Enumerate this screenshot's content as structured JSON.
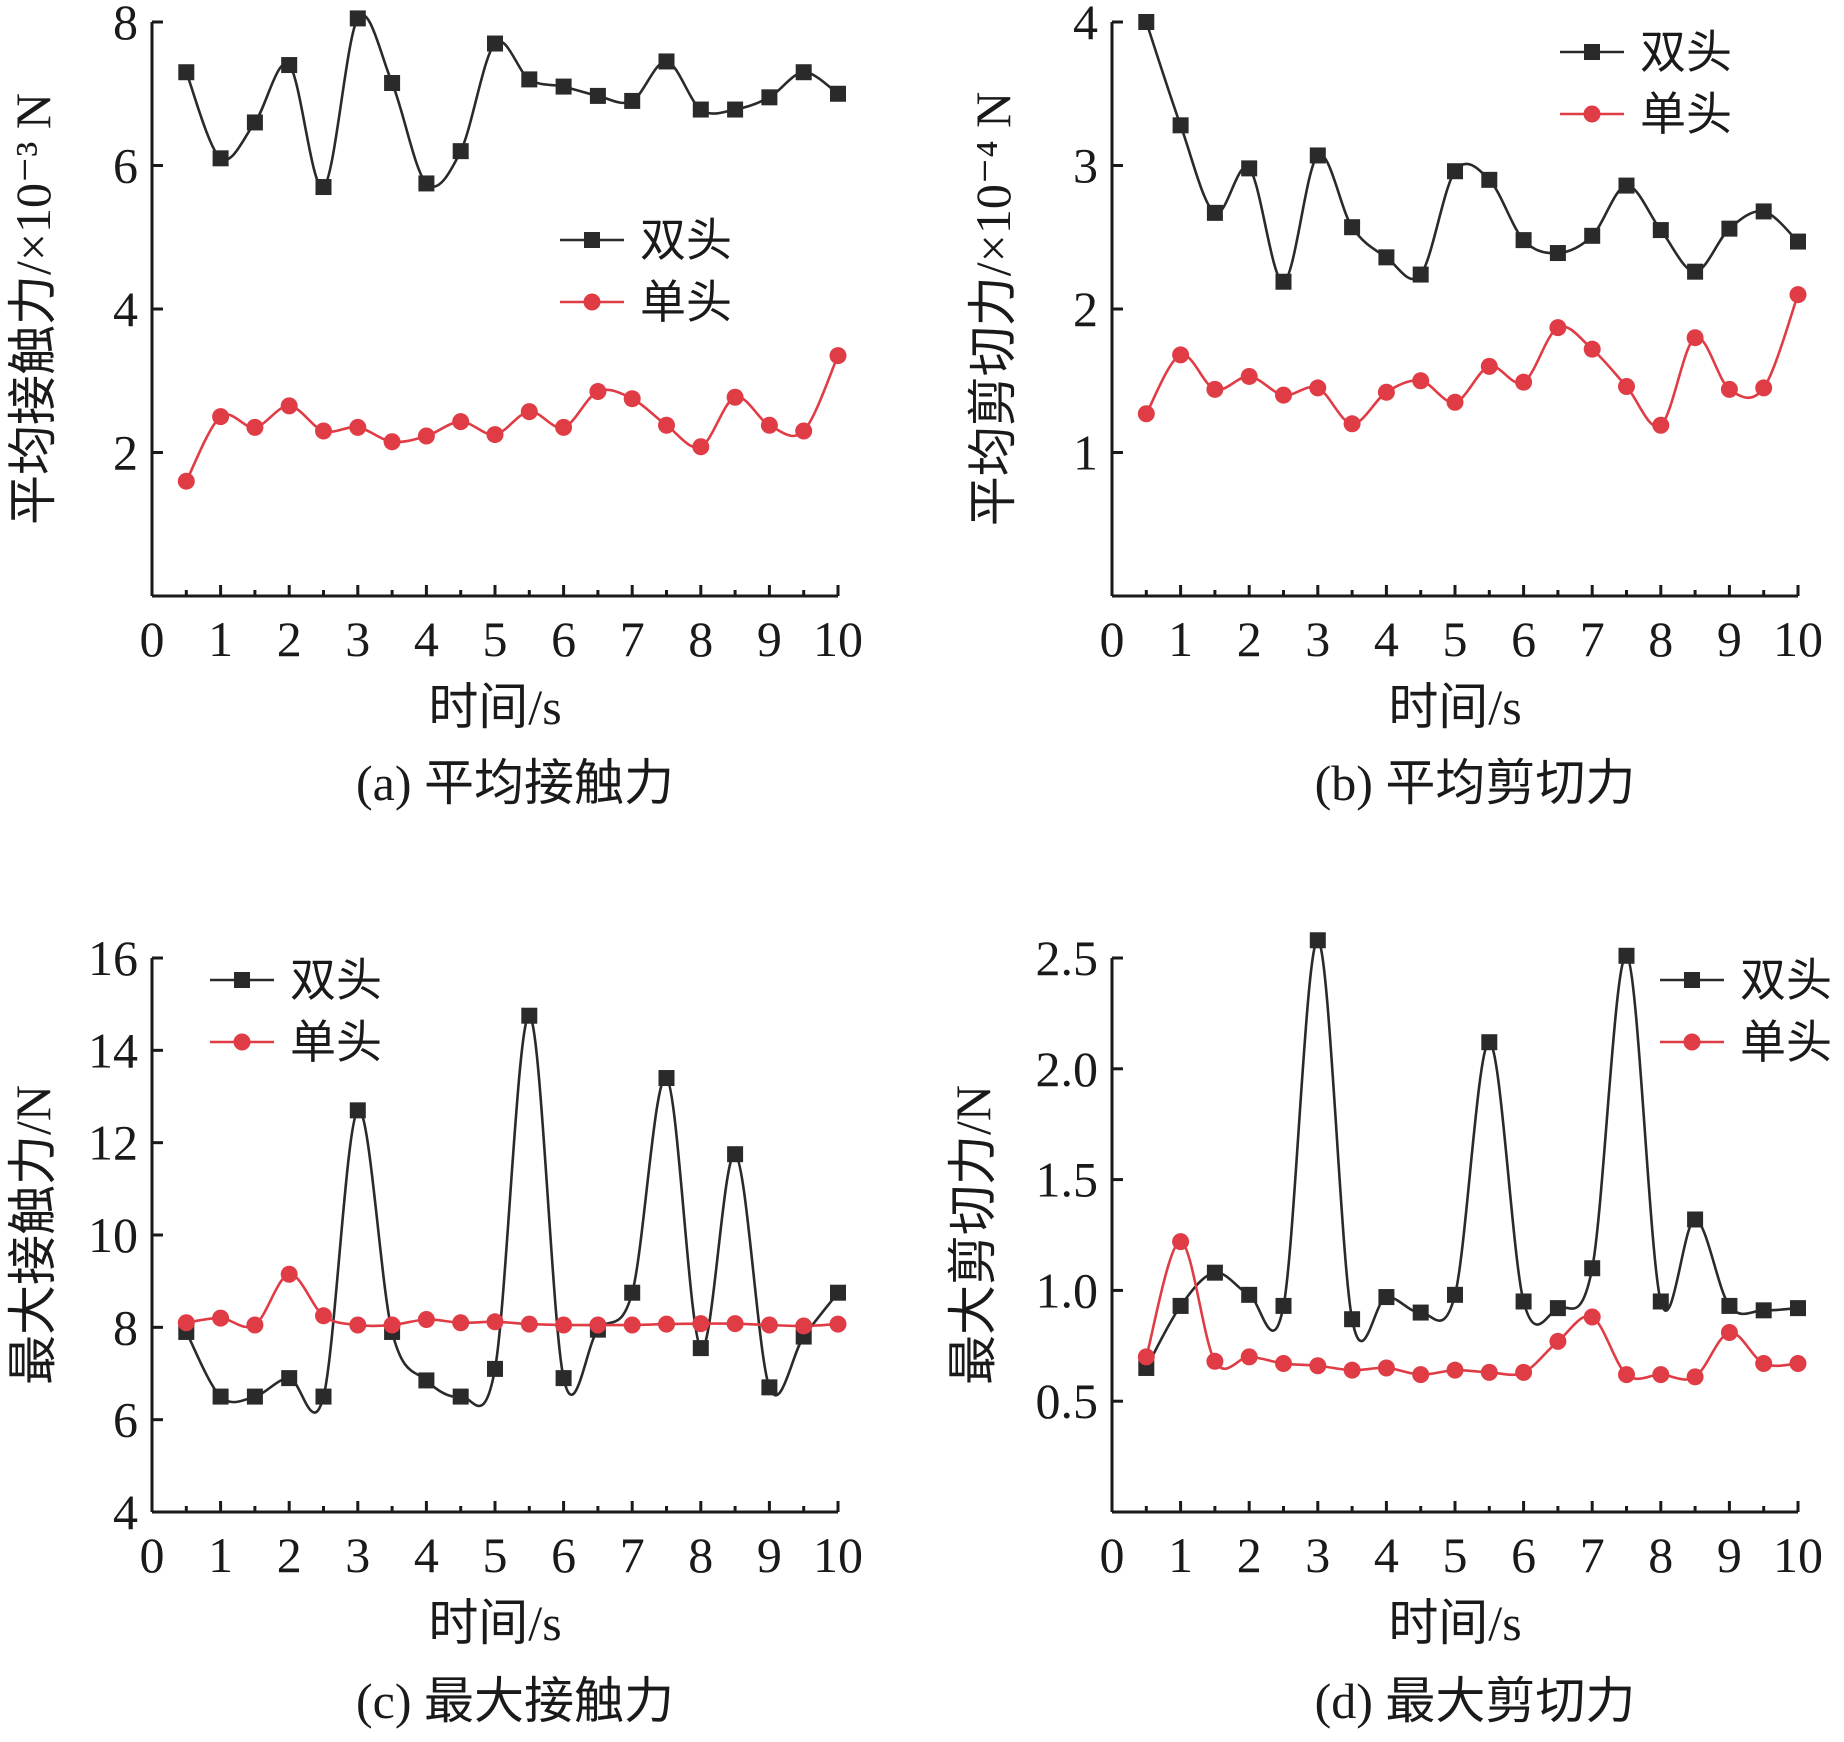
{
  "colors": {
    "double": "#2a2a2a",
    "single": "#e03c46"
  },
  "chart_data": [
    {
      "type": "line",
      "caption": "(a) 平均接触力",
      "xlabel": "时间/s",
      "ylabel": "平均接触力/×10⁻³ N",
      "xlim": [
        0,
        10
      ],
      "ylim": [
        0,
        8
      ],
      "xticks": [
        0,
        1,
        2,
        3,
        4,
        5,
        6,
        7,
        8,
        9,
        10
      ],
      "yticks": [
        2,
        4,
        6,
        8
      ],
      "legend_position": "center-right",
      "series": [
        {
          "name": "双头",
          "marker": "square",
          "x": [
            0.5,
            1,
            1.5,
            2,
            2.5,
            3,
            3.5,
            4,
            4.5,
            5,
            5.5,
            6,
            6.5,
            7,
            7.5,
            8,
            8.5,
            9,
            9.5,
            10
          ],
          "y": [
            7.3,
            6.1,
            6.6,
            7.4,
            5.7,
            8.05,
            7.15,
            5.75,
            6.2,
            7.7,
            7.2,
            7.1,
            6.97,
            6.9,
            7.45,
            6.78,
            6.78,
            6.95,
            7.3,
            7.0
          ]
        },
        {
          "name": "单头",
          "marker": "circle",
          "x": [
            0.5,
            1,
            1.5,
            2,
            2.5,
            3,
            3.5,
            4,
            4.5,
            5,
            5.5,
            6,
            6.5,
            7,
            7.5,
            8,
            8.5,
            9,
            9.5,
            10
          ],
          "y": [
            1.6,
            2.5,
            2.35,
            2.65,
            2.3,
            2.35,
            2.15,
            2.23,
            2.43,
            2.25,
            2.57,
            2.35,
            2.85,
            2.75,
            2.38,
            2.08,
            2.77,
            2.38,
            2.3,
            3.35
          ]
        }
      ]
    },
    {
      "type": "line",
      "caption": "(b) 平均剪切力",
      "xlabel": "时间/s",
      "ylabel": "平均剪切力/×10⁻⁴ N",
      "xlim": [
        0,
        10
      ],
      "ylim": [
        0,
        4
      ],
      "xticks": [
        0,
        1,
        2,
        3,
        4,
        5,
        6,
        7,
        8,
        9,
        10
      ],
      "yticks": [
        1,
        2,
        3,
        4
      ],
      "legend_position": "top-right",
      "series": [
        {
          "name": "双头",
          "marker": "square",
          "x": [
            0.5,
            1,
            1.5,
            2,
            2.5,
            3,
            3.5,
            4,
            4.5,
            5,
            5.5,
            6,
            6.5,
            7,
            7.5,
            8,
            8.5,
            9,
            9.5,
            10
          ],
          "y": [
            4.0,
            3.28,
            2.67,
            2.98,
            2.19,
            3.07,
            2.57,
            2.36,
            2.24,
            2.96,
            2.9,
            2.48,
            2.39,
            2.51,
            2.86,
            2.55,
            2.26,
            2.56,
            2.68,
            2.47
          ]
        },
        {
          "name": "单头",
          "marker": "circle",
          "x": [
            0.5,
            1,
            1.5,
            2,
            2.5,
            3,
            3.5,
            4,
            4.5,
            5,
            5.5,
            6,
            6.5,
            7,
            7.5,
            8,
            8.5,
            9,
            9.5,
            10
          ],
          "y": [
            1.27,
            1.68,
            1.44,
            1.53,
            1.4,
            1.45,
            1.2,
            1.42,
            1.5,
            1.35,
            1.6,
            1.49,
            1.87,
            1.72,
            1.46,
            1.19,
            1.8,
            1.44,
            1.45,
            2.1
          ]
        }
      ]
    },
    {
      "type": "line",
      "caption": "(c) 最大接触力",
      "xlabel": "时间/s",
      "ylabel": "最大接触力/N",
      "xlim": [
        0,
        10
      ],
      "ylim": [
        4,
        16
      ],
      "xticks": [
        0,
        1,
        2,
        3,
        4,
        5,
        6,
        7,
        8,
        9,
        10
      ],
      "yticks": [
        4,
        6,
        8,
        10,
        12,
        14,
        16
      ],
      "legend_position": "top-left",
      "series": [
        {
          "name": "双头",
          "marker": "square",
          "x": [
            0.5,
            1,
            1.5,
            2,
            2.5,
            3,
            3.5,
            4,
            4.5,
            5,
            5.5,
            6,
            6.5,
            7,
            7.5,
            8,
            8.5,
            9,
            9.5,
            10
          ],
          "y": [
            7.9,
            6.5,
            6.5,
            6.9,
            6.5,
            12.7,
            7.9,
            6.85,
            6.5,
            7.1,
            14.75,
            6.9,
            7.95,
            8.75,
            13.4,
            7.55,
            11.75,
            6.7,
            7.8,
            8.75
          ]
        },
        {
          "name": "单头",
          "marker": "circle",
          "x": [
            0.5,
            1,
            1.5,
            2,
            2.5,
            3,
            3.5,
            4,
            4.5,
            5,
            5.5,
            6,
            6.5,
            7,
            7.5,
            8,
            8.5,
            9,
            9.5,
            10
          ],
          "y": [
            8.1,
            8.2,
            8.05,
            9.15,
            8.25,
            8.05,
            8.05,
            8.17,
            8.1,
            8.12,
            8.07,
            8.05,
            8.05,
            8.05,
            8.07,
            8.08,
            8.08,
            8.05,
            8.03,
            8.07
          ]
        }
      ]
    },
    {
      "type": "line",
      "caption": "(d) 最大剪切力",
      "xlabel": "时间/s",
      "ylabel": "最大剪切力/N",
      "xlim": [
        0,
        10
      ],
      "ylim": [
        0,
        2.5
      ],
      "xticks": [
        0,
        1,
        2,
        3,
        4,
        5,
        6,
        7,
        8,
        9,
        10
      ],
      "yticks": [
        0.5,
        1.0,
        1.5,
        2.0,
        2.5
      ],
      "ytick_labels": [
        "0.5",
        "1.0",
        "1.5",
        "2.0",
        "2.5"
      ],
      "legend_position": "top-right",
      "series": [
        {
          "name": "双头",
          "marker": "square",
          "x": [
            0.5,
            1,
            1.5,
            2,
            2.5,
            3,
            3.5,
            4,
            4.5,
            5,
            5.5,
            6,
            6.5,
            7,
            7.5,
            8,
            8.5,
            9,
            9.5,
            10
          ],
          "y": [
            0.65,
            0.93,
            1.08,
            0.98,
            0.93,
            2.58,
            0.87,
            0.97,
            0.9,
            0.98,
            2.12,
            0.95,
            0.92,
            1.1,
            2.51,
            0.95,
            1.32,
            0.93,
            0.91,
            0.92
          ]
        },
        {
          "name": "单头",
          "marker": "circle",
          "x": [
            0.5,
            1,
            1.5,
            2,
            2.5,
            3,
            3.5,
            4,
            4.5,
            5,
            5.5,
            6,
            6.5,
            7,
            7.5,
            8,
            8.5,
            9,
            9.5,
            10
          ],
          "y": [
            0.7,
            1.22,
            0.68,
            0.7,
            0.67,
            0.66,
            0.64,
            0.65,
            0.62,
            0.64,
            0.63,
            0.63,
            0.77,
            0.88,
            0.62,
            0.62,
            0.61,
            0.81,
            0.67,
            0.67
          ]
        }
      ]
    }
  ]
}
